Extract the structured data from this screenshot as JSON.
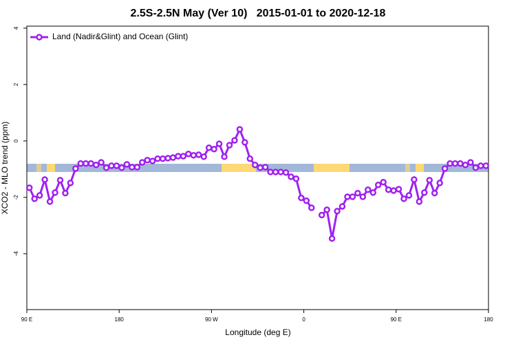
{
  "chart_data": {
    "type": "line",
    "title": "2.5S-2.5N May (Ver 10)   2015-01-01 to 2020-12-18",
    "x_label": "Longitude (deg E)",
    "y_label": "XCO2 - MLO trend (ppm)",
    "xlim": [
      90,
      540
    ],
    "xticks": [
      {
        "value": 90,
        "label": "90 E"
      },
      {
        "value": 180,
        "label": "180"
      },
      {
        "value": 270,
        "label": "90 W"
      },
      {
        "value": 360,
        "label": "0"
      },
      {
        "value": 450,
        "label": "90 E"
      },
      {
        "value": 540,
        "label": "180"
      }
    ],
    "ylim": [
      -5.98,
      4.07
    ],
    "yticks": [
      -4,
      -2,
      0,
      2,
      4
    ],
    "legend": "top-left",
    "x": [
      92.5,
      97.5,
      102.5,
      107.5,
      112.5,
      117.5,
      122.5,
      127.5,
      132.5,
      137.5,
      142.5,
      147.5,
      152.5,
      157.5,
      162.5,
      167.5,
      172.5,
      177.5,
      182.5,
      187.5,
      192.5,
      197.5,
      202.5,
      207.5,
      212.5,
      217.5,
      222.5,
      227.5,
      232.5,
      237.5,
      242.5,
      247.5,
      252.5,
      257.5,
      262.5,
      267.5,
      272.5,
      277.5,
      282.5,
      287.5,
      292.5,
      297.5,
      302.5,
      307.5,
      312.5,
      317.5,
      322.5,
      327.5,
      332.5,
      337.5,
      342.5,
      347.5,
      352.5,
      357.5,
      362.5,
      367.5,
      372.5,
      377.5,
      382.5,
      387.5,
      392.5,
      397.5,
      402.5,
      407.5,
      412.5,
      417.5,
      422.5,
      427.5,
      432.5,
      437.5,
      442.5,
      447.5,
      452.5,
      457.5,
      462.5,
      467.5,
      472.5,
      477.5,
      482.5,
      487.5,
      492.5,
      497.5,
      502.5,
      507.5,
      512.5,
      517.5,
      522.5,
      527.5,
      532.5,
      537.5
    ],
    "series": [
      {
        "name": "Land (Nadir&Glint) and Ocean (Glint)",
        "color": "#a020f0",
        "values": [
          -1.66,
          -2.05,
          -1.93,
          -1.37,
          -2.15,
          -1.83,
          -1.39,
          -1.85,
          -1.49,
          -0.98,
          -0.8,
          -0.8,
          -0.8,
          -0.85,
          -0.76,
          -0.95,
          -0.88,
          -0.88,
          -0.95,
          -0.83,
          -0.93,
          -0.93,
          -0.76,
          -0.68,
          -0.71,
          -0.63,
          -0.63,
          -0.61,
          -0.59,
          -0.54,
          -0.54,
          -0.46,
          -0.51,
          -0.49,
          -0.56,
          -0.24,
          -0.29,
          -0.1,
          -0.56,
          -0.15,
          0.02,
          0.41,
          -0.05,
          -0.63,
          -0.85,
          -0.95,
          -0.93,
          -1.1,
          -1.1,
          -1.1,
          -1.12,
          -1.27,
          -1.34,
          -2.02,
          -2.12,
          -2.37,
          null,
          -2.63,
          -2.44,
          -3.46,
          -2.49,
          -2.32,
          -1.98,
          -1.98,
          -1.85,
          -1.98,
          -1.73,
          -1.83,
          -1.56,
          -1.46,
          -1.73,
          -1.76,
          -1.71,
          -2.05,
          -1.93,
          -1.37,
          -2.15,
          -1.83,
          -1.39,
          -1.85,
          -1.49,
          -0.98,
          -0.8,
          -0.8,
          -0.8,
          -0.85,
          -0.76,
          -0.95,
          -0.88,
          -0.88
        ]
      }
    ]
  }
}
